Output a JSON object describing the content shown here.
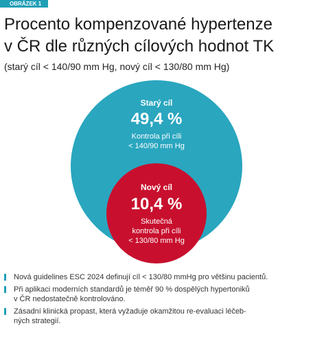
{
  "figure_label": "OBRÁZEK 1",
  "title": [
    "Procento kompenzované hypertenze",
    "v ČR dle různých cílových hodnot TK"
  ],
  "subtitle": "(starý cíl < 140/90 mm Hg, nový cíl < 130/80 mm Hg)",
  "outer_circle": {
    "heading": "Starý cíl",
    "value": "49,4 %",
    "caption": [
      "Kontrola při cíli",
      "< 140/90 mm Hg"
    ]
  },
  "inner_circle": {
    "heading": "Nový cíl",
    "value": "10,4 %",
    "caption": [
      "Skutečná",
      "kontrola při cíli",
      "< 130/80 mm Hg"
    ]
  },
  "bullets": [
    [
      "Nová guidelines ESC 2024 definují cíl < 130/80 mmHg pro většinu pacientů."
    ],
    [
      "Při aplikaci moderních standardů je téměř 90 % dospělých hypertoniků",
      "v ČR nedostatečně kontrolováno."
    ],
    [
      "Zásadní klinická propast, která vyžaduje okamžitou re-evaluaci léčeb-",
      "ných strategií."
    ]
  ]
}
